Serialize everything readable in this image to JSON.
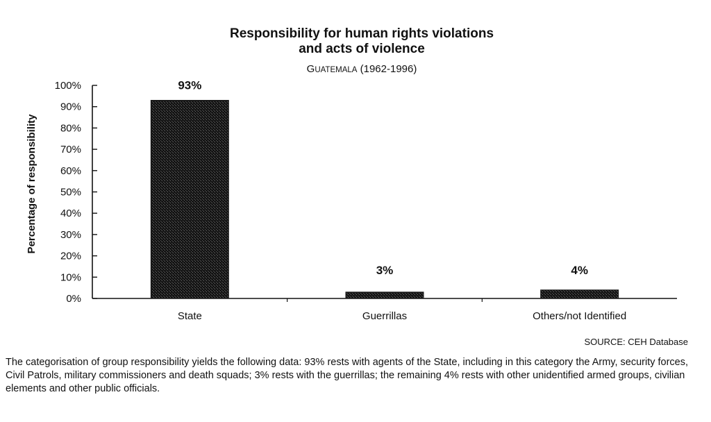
{
  "chart_data": {
    "type": "bar",
    "title_line1": "Responsibility for human rights violations",
    "title_line2": "and acts of violence",
    "subtitle_prefix": "G",
    "subtitle_smallcaps": "UATEMALA",
    "subtitle_suffix": " (1962-1996)",
    "ylabel": "Percentage of responsibility",
    "xlabel": "",
    "categories": [
      "State",
      "Guerrillas",
      "Others/not Identified"
    ],
    "values": [
      93,
      3,
      4
    ],
    "data_labels": [
      "93%",
      "3%",
      "4%"
    ],
    "ylim": [
      0,
      100
    ],
    "yticks": [
      "0%",
      "10%",
      "20%",
      "30%",
      "40%",
      "50%",
      "60%",
      "70%",
      "80%",
      "90%",
      "100%"
    ],
    "grid": false,
    "legend": "none",
    "bar_color": "#1a1a1a"
  },
  "source": "SOURCE: CEH Database",
  "caption": "The categorisation of group responsibility yields the following data: 93% rests with agents of the State, including in this category the Army, security forces, Civil Patrols, military commissioners and death squads; 3% rests with the guerrillas; the remaining 4% rests with other unidentified armed groups, civilian elements and other public officials."
}
